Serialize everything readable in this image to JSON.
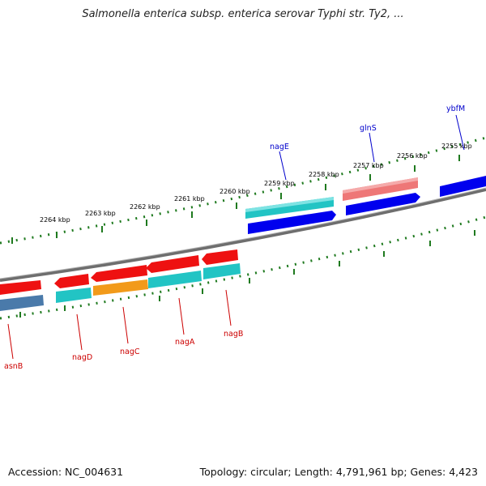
{
  "title": "Salmonella enterica subsp. enterica serovar Typhi str. Ty2, ...",
  "footer": {
    "accession": "Accession: NC_004631",
    "summary": "Topology: circular; Length: 4,791,961 bp; Genes: 4,423"
  },
  "colors": {
    "backbone": "#7a7a7a",
    "tick_green": "#1f7a1f",
    "forward_label": "#0000cc",
    "reverse_label": "#cc0000",
    "red_gene": "#ee1111",
    "cyan_gene": "#22c4c4",
    "blue_gene": "#0000ee",
    "pink_gene": "#ee7777",
    "orange_gene": "#f29a1a",
    "steel_gene": "#4a7aaa"
  },
  "kbp_labels": {
    "k2264": "2264 kbp",
    "k2263": "2263 kbp",
    "k2262": "2262 kbp",
    "k2261": "2261 kbp",
    "k2260": "2260 kbp",
    "k2259": "2259 kbp",
    "k2258": "2258 kbp",
    "k2257": "2257 kbp",
    "k2256": "2256 kbp",
    "k2255": "2255 kbp"
  },
  "genes_forward": {
    "nagE": "nagE",
    "glnS": "glnS",
    "ybfM": "ybfM"
  },
  "genes_reverse": {
    "asnB": "asnB",
    "nagD": "nagD",
    "nagC": "nagC",
    "nagA": "nagA",
    "nagB": "nagB"
  }
}
